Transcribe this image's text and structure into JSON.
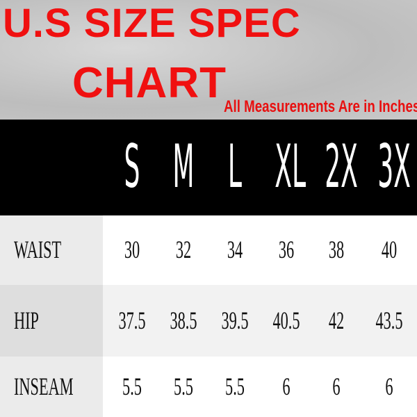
{
  "title_line1": "U.S SIZE SPEC",
  "title_line2": "CHART",
  "subtitle": "All Measurements Are in Inches.",
  "colors": {
    "title": "#f01010",
    "header_bg": "#000000"
  },
  "sizes": [
    "S",
    "M",
    "L",
    "XL",
    "2X",
    "3X"
  ],
  "rows": [
    {
      "label": "WAIST",
      "values": [
        "30",
        "32",
        "34",
        "36",
        "38",
        "40"
      ]
    },
    {
      "label": "HIP",
      "values": [
        "37.5",
        "38.5",
        "39.5",
        "40.5",
        "42",
        "43.5"
      ]
    },
    {
      "label": "INSEAM",
      "values": [
        "5.5",
        "5.5",
        "5.5",
        "6",
        "6",
        "6"
      ]
    }
  ]
}
